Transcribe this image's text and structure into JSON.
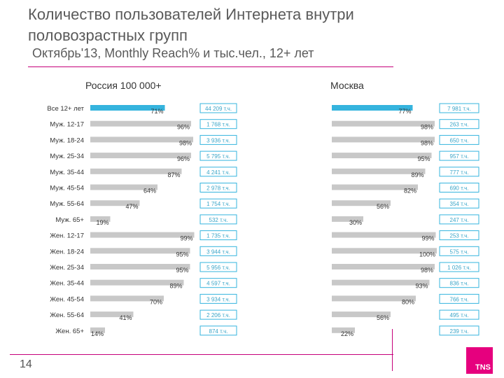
{
  "title": "Количество пользователей Интернета внутри половозрастных групп",
  "subtitle": "Октябрь'13, Monthly Reach% и тыс.чел., 12+ лет",
  "page_number": "14",
  "logo_text": "TNS",
  "colors": {
    "accent": "#c5007a",
    "bar": "#c8c8c8",
    "bar_highlight": "#35b4de",
    "box_border": "#35b4de",
    "box_text": "#3aa5c8"
  },
  "chart_data": {
    "type": "bar",
    "orientation": "horizontal",
    "unit": "%",
    "xlim": [
      0,
      100
    ],
    "categories": [
      "Все 12+ лет",
      "Муж. 12-17",
      "Муж. 18-24",
      "Муж. 25-34",
      "Муж. 35-44",
      "Муж. 45-54",
      "Муж. 55-64",
      "Муж. 65+",
      "Жен. 12-17",
      "Жен. 18-24",
      "Жен. 25-34",
      "Жен. 35-44",
      "Жен. 45-54",
      "Жен. 55-64",
      "Жен. 65+"
    ],
    "series": [
      {
        "name": "Россия 100 000+",
        "values": [
          71,
          96,
          98,
          96,
          87,
          64,
          47,
          19,
          99,
          95,
          95,
          89,
          70,
          41,
          14
        ],
        "labels": [
          "71%",
          "96%",
          "98%",
          "96%",
          "87%",
          "64%",
          "47%",
          "19%",
          "99%",
          "95%",
          "95%",
          "89%",
          "70%",
          "41%",
          "14%"
        ],
        "counts": [
          "44 209 т.ч.",
          "1 768 т.ч.",
          "3 936 т.ч.",
          "5 795 т.ч.",
          "4 241 т.ч.",
          "2 978 т.ч.",
          "1 754 т.ч.",
          "532 т.ч.",
          "1 735 т.ч.",
          "3 944 т.ч.",
          "5 956 т.ч.",
          "4 597 т.ч.",
          "3 934 т.ч.",
          "2 206 т.ч.",
          "874 т.ч."
        ]
      },
      {
        "name": "Москва",
        "values": [
          77,
          98,
          98,
          95,
          89,
          82,
          56,
          30,
          99,
          100,
          98,
          93,
          80,
          56,
          22
        ],
        "labels": [
          "77%",
          "98%",
          "98%",
          "95%",
          "89%",
          "82%",
          "56%",
          "30%",
          "99%",
          "100%",
          "98%",
          "93%",
          "80%",
          "56%",
          "22%"
        ],
        "counts": [
          "7 981 т.ч.",
          "263 т.ч.",
          "650 т.ч.",
          "957 т.ч.",
          "777 т.ч.",
          "690 т.ч.",
          "354 т.ч.",
          "247 т.ч.",
          "253 т.ч.",
          "575 т.ч.",
          "1 026 т.ч.",
          "836 т.ч.",
          "766 т.ч.",
          "495 т.ч.",
          "239 т.ч."
        ]
      }
    ]
  }
}
